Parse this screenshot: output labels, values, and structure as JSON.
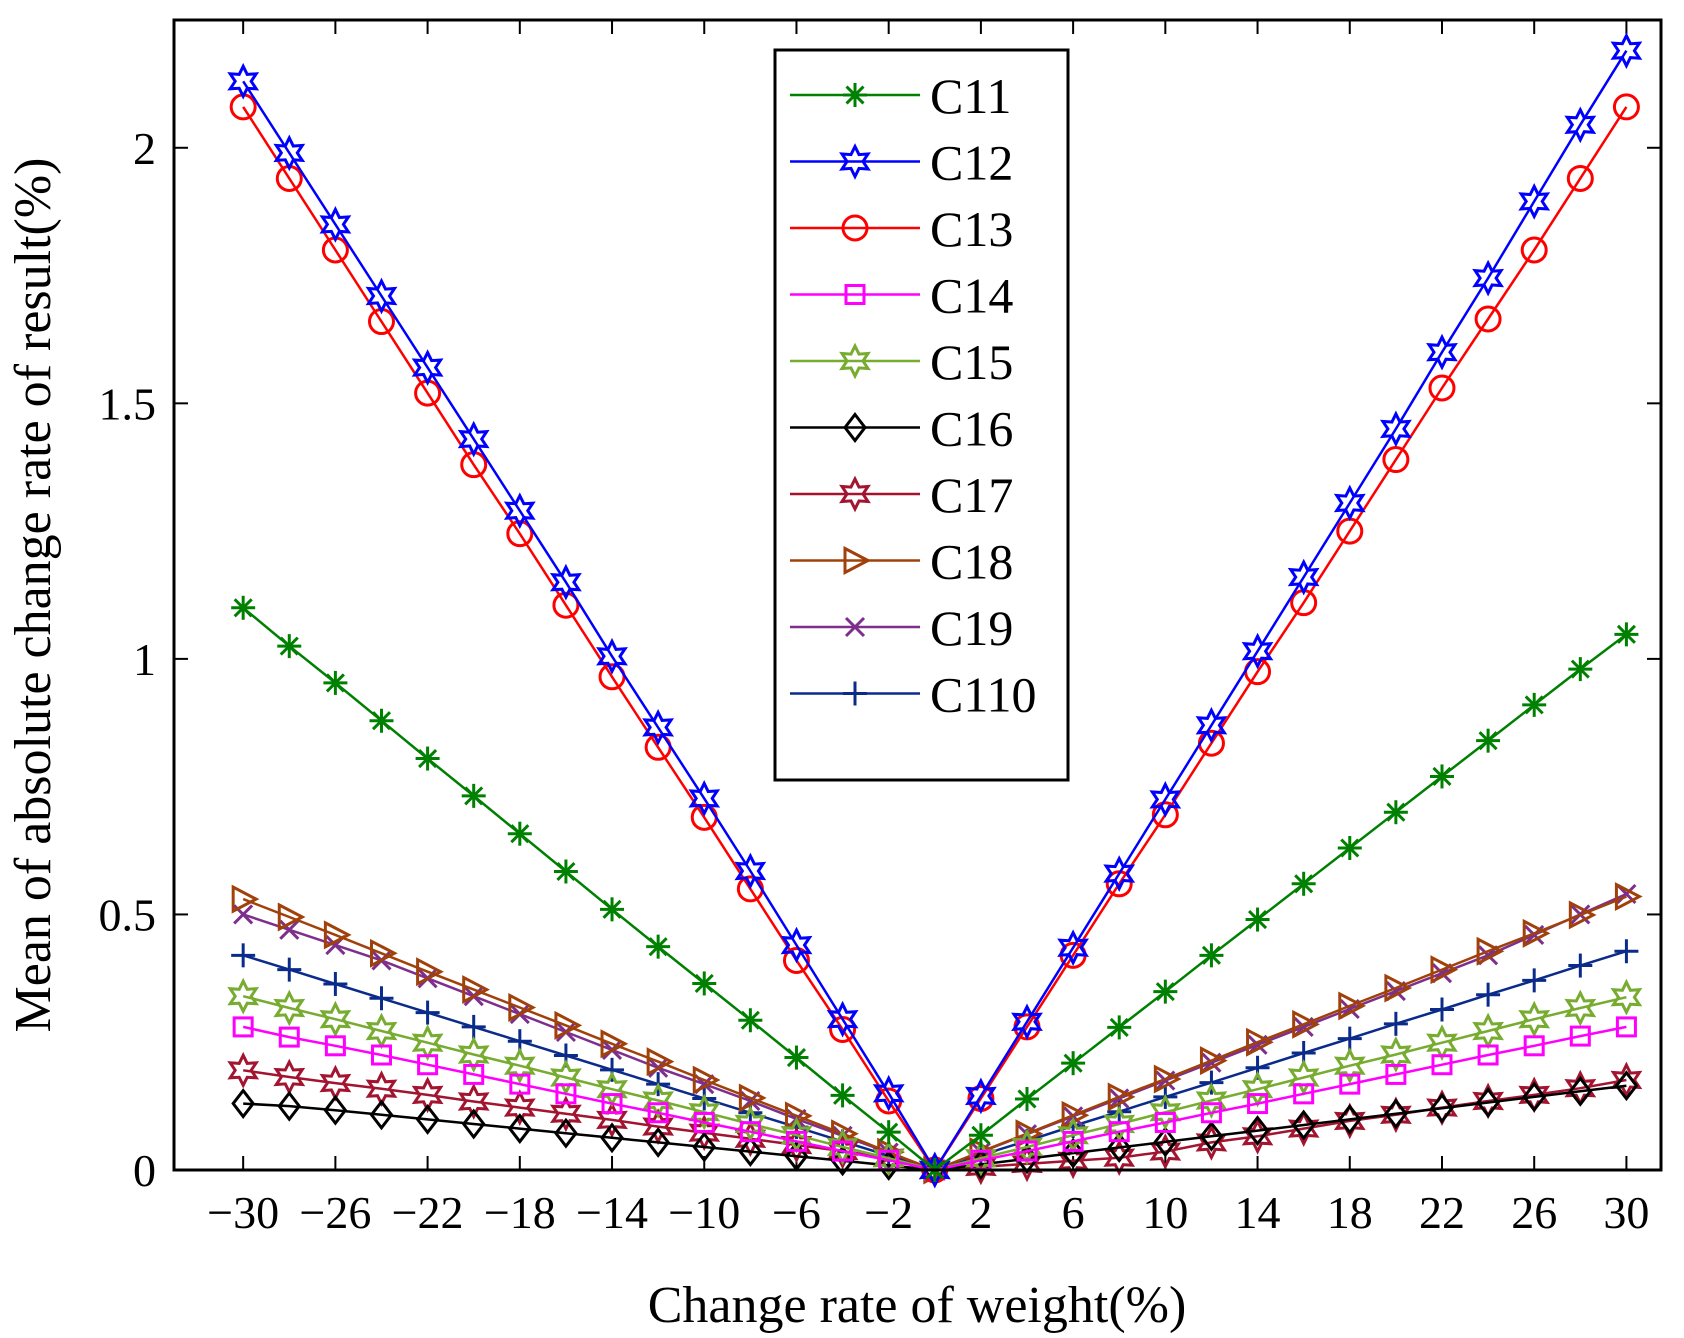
{
  "chart_data": {
    "type": "line",
    "title": "",
    "xlabel": "Change rate of weight(%)",
    "ylabel": "Mean of absolute change rate of result(%)",
    "xlim": [
      -33,
      31.5
    ],
    "ylim": [
      0,
      2.25
    ],
    "xticks": [
      -30,
      -26,
      -22,
      -18,
      -14,
      -10,
      -6,
      -2,
      2,
      6,
      10,
      14,
      18,
      22,
      26,
      30
    ],
    "xtick_labels": [
      "−30",
      "−26",
      "−22",
      "−18",
      "−14",
      "−10",
      "−6",
      "−2",
      "2",
      "6",
      "10",
      "14",
      "18",
      "22",
      "26",
      "30"
    ],
    "yticks": [
      0,
      0.5,
      1,
      1.5,
      2
    ],
    "ytick_labels": [
      "0",
      "0.5",
      "1",
      "1.5",
      "2"
    ],
    "legend_position": "top-center",
    "x": [
      -30,
      -28,
      -26,
      -24,
      -22,
      -20,
      -18,
      -16,
      -14,
      -12,
      -10,
      -8,
      -6,
      -4,
      -2,
      0,
      2,
      4,
      6,
      8,
      10,
      12,
      14,
      16,
      18,
      20,
      22,
      24,
      26,
      28,
      30
    ],
    "series": [
      {
        "name": "C11",
        "color": "#008000",
        "marker": "asterisk",
        "values": [
          1.1,
          1.025,
          0.953,
          0.879,
          0.805,
          0.732,
          0.658,
          0.584,
          0.51,
          0.437,
          0.365,
          0.293,
          0.22,
          0.146,
          0.074,
          0.0,
          0.068,
          0.139,
          0.209,
          0.279,
          0.349,
          0.42,
          0.49,
          0.56,
          0.63,
          0.7,
          0.77,
          0.84,
          0.91,
          0.98,
          1.048
        ]
      },
      {
        "name": "C12",
        "color": "#0000ff",
        "marker": "hexagram",
        "values": [
          2.13,
          1.99,
          1.85,
          1.71,
          1.57,
          1.43,
          1.29,
          1.15,
          1.005,
          0.866,
          0.727,
          0.585,
          0.44,
          0.295,
          0.15,
          0.0,
          0.145,
          0.29,
          0.435,
          0.58,
          0.725,
          0.87,
          1.015,
          1.16,
          1.305,
          1.45,
          1.6,
          1.745,
          1.895,
          2.045,
          2.19
        ]
      },
      {
        "name": "C13",
        "color": "#ff0000",
        "marker": "circle",
        "values": [
          2.08,
          1.94,
          1.8,
          1.66,
          1.52,
          1.38,
          1.245,
          1.105,
          0.965,
          0.827,
          0.69,
          0.55,
          0.41,
          0.275,
          0.135,
          0.0,
          0.14,
          0.28,
          0.42,
          0.56,
          0.695,
          0.835,
          0.975,
          1.11,
          1.25,
          1.39,
          1.53,
          1.665,
          1.8,
          1.94,
          2.08
        ]
      },
      {
        "name": "C14",
        "color": "#ff00ff",
        "marker": "square",
        "values": [
          0.28,
          0.26,
          0.243,
          0.225,
          0.206,
          0.187,
          0.168,
          0.149,
          0.13,
          0.112,
          0.093,
          0.075,
          0.056,
          0.037,
          0.019,
          0.0,
          0.019,
          0.037,
          0.056,
          0.075,
          0.093,
          0.112,
          0.13,
          0.149,
          0.168,
          0.187,
          0.206,
          0.225,
          0.243,
          0.262,
          0.28
        ]
      },
      {
        "name": "C15",
        "color": "#77ac30",
        "marker": "hexagram",
        "values": [
          0.34,
          0.317,
          0.295,
          0.272,
          0.249,
          0.226,
          0.204,
          0.181,
          0.158,
          0.136,
          0.113,
          0.09,
          0.068,
          0.045,
          0.023,
          0.0,
          0.023,
          0.045,
          0.068,
          0.09,
          0.113,
          0.136,
          0.158,
          0.181,
          0.204,
          0.226,
          0.249,
          0.272,
          0.295,
          0.317,
          0.338
        ]
      },
      {
        "name": "C16",
        "color": "#000000",
        "marker": "diamond",
        "values": [
          0.13,
          0.125,
          0.117,
          0.108,
          0.099,
          0.09,
          0.081,
          0.072,
          0.063,
          0.054,
          0.045,
          0.036,
          0.027,
          0.018,
          0.009,
          0.0,
          0.011,
          0.022,
          0.033,
          0.044,
          0.055,
          0.066,
          0.077,
          0.088,
          0.099,
          0.11,
          0.121,
          0.132,
          0.143,
          0.154,
          0.165
        ]
      },
      {
        "name": "C17",
        "color": "#a2142f",
        "marker": "hexagram",
        "values": [
          0.195,
          0.182,
          0.17,
          0.159,
          0.147,
          0.134,
          0.122,
          0.11,
          0.098,
          0.085,
          0.073,
          0.061,
          0.049,
          0.037,
          0.024,
          0.0,
          0.006,
          0.012,
          0.018,
          0.024,
          0.036,
          0.054,
          0.066,
          0.081,
          0.096,
          0.108,
          0.122,
          0.135,
          0.147,
          0.16,
          0.176
        ]
      },
      {
        "name": "C18",
        "color": "#a0410a",
        "marker": "triangle-right",
        "values": [
          0.53,
          0.495,
          0.46,
          0.424,
          0.388,
          0.353,
          0.318,
          0.283,
          0.247,
          0.212,
          0.176,
          0.141,
          0.106,
          0.071,
          0.035,
          0.0,
          0.036,
          0.071,
          0.107,
          0.143,
          0.178,
          0.214,
          0.25,
          0.285,
          0.321,
          0.356,
          0.392,
          0.428,
          0.463,
          0.499,
          0.535
        ]
      },
      {
        "name": "C19",
        "color": "#7e2f8e",
        "marker": "x",
        "values": [
          0.5,
          0.47,
          0.44,
          0.41,
          0.375,
          0.34,
          0.305,
          0.27,
          0.235,
          0.2,
          0.168,
          0.135,
          0.1,
          0.067,
          0.034,
          0.0,
          0.035,
          0.07,
          0.105,
          0.14,
          0.175,
          0.21,
          0.245,
          0.28,
          0.315,
          0.35,
          0.385,
          0.42,
          0.46,
          0.5,
          0.54
        ]
      },
      {
        "name": "C110",
        "color": "#0b2b8a",
        "marker": "plus",
        "values": [
          0.42,
          0.392,
          0.364,
          0.336,
          0.308,
          0.28,
          0.252,
          0.224,
          0.196,
          0.168,
          0.14,
          0.112,
          0.084,
          0.056,
          0.028,
          0.0,
          0.029,
          0.057,
          0.086,
          0.114,
          0.143,
          0.171,
          0.2,
          0.229,
          0.257,
          0.286,
          0.314,
          0.343,
          0.371,
          0.4,
          0.428
        ]
      }
    ]
  }
}
